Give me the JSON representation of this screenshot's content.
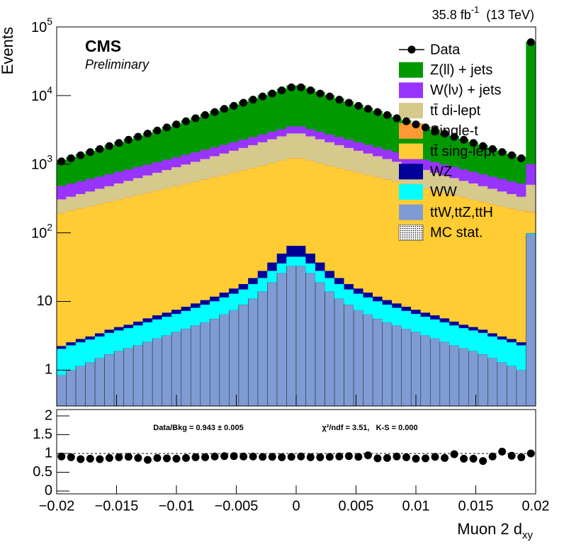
{
  "chart_data": {
    "type": "stacked_histogram",
    "lumi": {
      "text": "35.8 fb",
      "exponent": "-1",
      "energy": "(13 TeV)"
    },
    "experiment": "CMS",
    "status": "Preliminary",
    "ylabel": "Events",
    "xlabel": {
      "text": "Muon 2 d",
      "subscript": "xy"
    },
    "log_y": true,
    "xlim": [
      -0.02,
      0.02
    ],
    "ylim": [
      0.3,
      100000
    ],
    "xticks": [
      {
        "value": -0.02,
        "label": "−0.02"
      },
      {
        "value": -0.015,
        "label": "−0.015"
      },
      {
        "value": -0.01,
        "label": "−0.01"
      },
      {
        "value": -0.005,
        "label": "−0.005"
      },
      0,
      0.005,
      0.01,
      0.015,
      0.02
    ],
    "yticks": [
      1,
      10,
      {
        "value": 100,
        "label": "10",
        "exponent": "2"
      },
      {
        "value": 1000,
        "label": "10",
        "exponent": "3"
      },
      {
        "value": 10000,
        "label": "10",
        "exponent": "4"
      },
      {
        "value": 100000,
        "label": "10",
        "exponent": "5"
      }
    ],
    "bins": [
      -0.02,
      -0.0192,
      -0.0184,
      -0.0176,
      -0.0168,
      -0.016,
      -0.0152,
      -0.0144,
      -0.0136,
      -0.0128,
      -0.012,
      -0.0112,
      -0.0104,
      -0.0096,
      -0.0088,
      -0.008,
      -0.0072,
      -0.0064,
      -0.0056,
      -0.0048,
      -0.004,
      -0.0032,
      -0.0024,
      -0.0016,
      -0.0008,
      0,
      0.0008,
      0.0016,
      0.0024,
      0.0032,
      0.004,
      0.0048,
      0.0056,
      0.0064,
      0.0072,
      0.008,
      0.0088,
      0.0096,
      0.0104,
      0.0112,
      0.012,
      0.0128,
      0.0136,
      0.0144,
      0.0152,
      0.016,
      0.0168,
      0.0176,
      0.0184,
      0.0192,
      0.02
    ],
    "series": [
      {
        "name": "ttW,ttZ,ttH",
        "color": "#7e9bd4",
        "values": [
          0.85,
          1.0,
          1.15,
          1.3,
          1.5,
          1.7,
          1.9,
          2.1,
          2.3,
          2.6,
          2.9,
          3.2,
          3.6,
          4,
          4.5,
          5,
          5.6,
          6.5,
          7.5,
          9,
          11,
          14,
          19,
          26,
          33,
          33,
          26,
          19,
          14,
          11,
          9,
          7.5,
          6.5,
          5.6,
          5,
          4.5,
          4,
          3.6,
          3.2,
          2.9,
          2.6,
          2.3,
          2.1,
          1.9,
          1.7,
          1.5,
          1.3,
          1.15,
          1.0,
          95
        ]
      },
      {
        "name": "WW",
        "color": "#00ffff",
        "values": [
          1.2,
          1.3,
          1.4,
          1.5,
          1.6,
          1.8,
          1.9,
          2,
          2.2,
          2.4,
          2.6,
          2.8,
          3,
          3.3,
          3.6,
          4,
          4.5,
          5,
          5.5,
          6,
          7,
          8,
          9,
          10,
          12,
          12,
          10,
          9,
          8,
          7,
          6,
          5.5,
          5,
          4.5,
          4,
          3.6,
          3.3,
          3,
          2.8,
          2.6,
          2.4,
          2.2,
          2,
          1.9,
          1.8,
          1.6,
          1.5,
          1.4,
          1.3,
          3
        ]
      },
      {
        "name": "WZ",
        "color": "#000099",
        "values": [
          0.2,
          0.25,
          0.3,
          0.3,
          0.35,
          0.4,
          0.45,
          0.5,
          0.6,
          0.7,
          0.8,
          0.9,
          1,
          1.1,
          1.3,
          1.5,
          1.7,
          2,
          2.5,
          3,
          4,
          6,
          9,
          14,
          20,
          20,
          14,
          9,
          6,
          4,
          3,
          2.5,
          2,
          1.7,
          1.5,
          1.3,
          1.1,
          1,
          0.9,
          0.8,
          0.7,
          0.6,
          0.5,
          0.45,
          0.4,
          0.35,
          0.3,
          0.3,
          0.25,
          1
        ]
      },
      {
        "name": "tt̄ sing-lept",
        "color": "#ffcc33",
        "values": [
          190,
          205,
          221,
          238,
          256,
          276,
          298,
          321,
          346,
          373,
          402,
          433,
          467,
          503,
          543,
          585,
          630,
          680,
          733,
          790,
          851,
          917,
          990,
          1065,
          1148,
          1148,
          1065,
          990,
          917,
          851,
          790,
          733,
          680,
          630,
          585,
          543,
          503,
          467,
          433,
          402,
          373,
          346,
          321,
          298,
          276,
          256,
          238,
          221,
          205,
          100
        ]
      },
      {
        "name": "Single-t",
        "color": "#ff9933",
        "values": [
          2.2,
          2.4,
          2.6,
          2.8,
          3,
          3.3,
          3.6,
          3.9,
          4.2,
          4.6,
          5,
          5.5,
          6,
          6.5,
          7,
          7.5,
          8,
          8.5,
          9,
          10,
          11,
          12,
          13,
          14,
          15,
          15,
          14,
          13,
          12,
          11,
          10,
          9,
          8.5,
          8,
          7.5,
          7,
          6.5,
          6,
          5.5,
          5,
          4.6,
          4.2,
          3.9,
          3.6,
          3.3,
          3,
          2.8,
          2.6,
          2.4,
          5
        ]
      },
      {
        "name": "tt̄ di-lept",
        "color": "#d5c98c",
        "values": [
          114,
          127,
          142,
          158,
          177,
          197,
          220,
          245,
          275,
          305,
          340,
          380,
          425,
          475,
          530,
          590,
          660,
          735,
          820,
          915,
          1020,
          1140,
          1275,
          1420,
          1585,
          1585,
          1420,
          1275,
          1140,
          1020,
          915,
          820,
          735,
          660,
          590,
          530,
          475,
          425,
          380,
          340,
          305,
          275,
          245,
          220,
          197,
          177,
          158,
          142,
          127,
          300
        ]
      },
      {
        "name": "W(lν) + jets",
        "color": "#9933ff",
        "values": [
          175,
          186,
          198,
          210,
          223,
          237,
          252,
          268,
          285,
          300,
          320,
          340,
          360,
          385,
          410,
          435,
          460,
          490,
          520,
          555,
          590,
          625,
          665,
          705,
          750,
          750,
          705,
          665,
          625,
          590,
          555,
          520,
          490,
          460,
          435,
          410,
          385,
          360,
          340,
          320,
          300,
          285,
          268,
          252,
          237,
          223,
          210,
          198,
          186,
          500
        ]
      },
      {
        "name": "Z(ll) + jets",
        "color": "#009900",
        "values": [
          665,
          745,
          835,
          935,
          1050,
          1180,
          1320,
          1480,
          1660,
          1860,
          2090,
          2340,
          2630,
          2950,
          3300,
          3710,
          4160,
          4660,
          5230,
          5860,
          6570,
          7370,
          8270,
          9270,
          10400,
          10400,
          9270,
          8270,
          7370,
          6570,
          5860,
          5230,
          4660,
          4160,
          3710,
          3300,
          2950,
          2630,
          2340,
          2090,
          1860,
          1660,
          1480,
          1320,
          1180,
          1050,
          935,
          835,
          745,
          60000
        ]
      }
    ],
    "data": {
      "name": "Data",
      "color": "#000000",
      "values": [
        1100,
        1220,
        1350,
        1500,
        1660,
        1840,
        2040,
        2270,
        2510,
        2790,
        3090,
        3430,
        3800,
        4220,
        4680,
        5200,
        5750,
        6400,
        7080,
        7870,
        8710,
        9700,
        10700,
        11900,
        13183,
        13183,
        11900,
        10700,
        9700,
        8710,
        7870,
        7080,
        6400,
        5750,
        5200,
        4680,
        4220,
        3800,
        3430,
        3090,
        2790,
        2510,
        2270,
        2040,
        1840,
        1660,
        1500,
        1350,
        1220,
        60000
      ]
    },
    "mc_stat_label": "MC stat.",
    "ratio": {
      "ylim": [
        0,
        2
      ],
      "yticks": [
        0,
        0.5,
        1,
        1.5,
        2
      ],
      "reference_line": 1,
      "annotation_left": "Data/Bkg = 0.943 ± 0.005",
      "annotation_right": "χ²/ndf = 3.51,   K-S = 0.000",
      "values": [
        0.92,
        0.9,
        0.85,
        0.86,
        0.85,
        0.88,
        0.9,
        0.91,
        0.88,
        0.83,
        0.88,
        0.87,
        0.86,
        0.88,
        0.9,
        0.9,
        0.92,
        0.93,
        0.93,
        0.92,
        0.92,
        0.91,
        0.91,
        0.9,
        0.91,
        0.92,
        0.9,
        0.9,
        0.91,
        0.92,
        0.93,
        0.91,
        0.95,
        0.87,
        0.88,
        0.92,
        0.9,
        0.86,
        0.87,
        0.91,
        0.88,
        0.98,
        0.86,
        0.86,
        0.8,
        0.92,
        1.05,
        0.94,
        0.9,
        1.0
      ]
    }
  }
}
